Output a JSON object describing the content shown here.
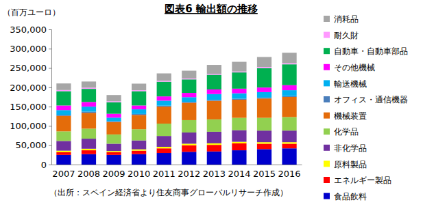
{
  "chart_data": {
    "type": "bar",
    "title": "図表6 輸出額の推移",
    "y_label": "（百万ユーロ）",
    "source": "（出所：スペイン経済省より住友商事グローバルリサーチ作成）",
    "stacked": true,
    "grid": false,
    "legend": "right",
    "categories": [
      "2007",
      "2008",
      "2009",
      "2010",
      "2011",
      "2012",
      "2013",
      "2014",
      "2015",
      "2016"
    ],
    "ylim": [
      0,
      350000
    ],
    "yticks": [
      0,
      {
        "value": 50000,
        "label": "50,000"
      },
      {
        "value": 100000,
        "label": "100,000"
      },
      {
        "value": 150000,
        "label": "150,000"
      },
      {
        "value": 200000,
        "label": "200,000"
      },
      {
        "value": 250000,
        "label": "250,000"
      },
      {
        "value": 300000,
        "label": "300,000"
      },
      {
        "value": 350000,
        "label": "350,000"
      }
    ],
    "series": [
      {
        "name": "食品飲料",
        "color": "#0000cc",
        "values": [
          25000,
          27000,
          25000,
          27000,
          30000,
          33000,
          34000,
          37000,
          40000,
          42000
        ]
      },
      {
        "name": "エネルギー製品",
        "color": "#ff0000",
        "values": [
          7000,
          10000,
          7000,
          9000,
          12000,
          17000,
          17000,
          18000,
          14000,
          12000
        ]
      },
      {
        "name": "原料製品",
        "color": "#ffff00",
        "values": [
          4000,
          4000,
          3000,
          3500,
          4000,
          4000,
          4000,
          4000,
          4000,
          4000
        ]
      },
      {
        "name": "非化学品",
        "color": "#7030a0",
        "values": [
          25000,
          26000,
          19000,
          23000,
          28000,
          29000,
          30000,
          30000,
          30000,
          30000
        ]
      },
      {
        "name": "化学品",
        "color": "#92d050",
        "values": [
          25000,
          26000,
          24000,
          29000,
          32000,
          32000,
          32000,
          32000,
          33000,
          35000
        ]
      },
      {
        "name": "機械装置",
        "color": "#e46c0a",
        "values": [
          40000,
          41000,
          32000,
          37000,
          44000,
          45000,
          48000,
          47000,
          50000,
          52000
        ]
      },
      {
        "name": "オフィス・通信機器",
        "color": "#4a7ebb",
        "values": [
          3000,
          3000,
          2500,
          2500,
          2500,
          2500,
          2500,
          2500,
          2500,
          2500
        ]
      },
      {
        "name": "輸送機械",
        "color": "#00b0f0",
        "values": [
          12000,
          13000,
          9000,
          12000,
          13000,
          12000,
          15000,
          14000,
          14000,
          15000
        ]
      },
      {
        "name": "その他機械",
        "color": "#ff00ff",
        "values": [
          12000,
          12000,
          10000,
          10000,
          11000,
          11000,
          12000,
          12000,
          12000,
          13000
        ]
      },
      {
        "name": "自動車・自動車部品",
        "color": "#00b050",
        "values": [
          37000,
          34000,
          30000,
          37000,
          38000,
          35000,
          38000,
          42000,
          50000,
          54000
        ]
      },
      {
        "name": "耐久財",
        "color": "#ff99ff",
        "values": [
          3000,
          3000,
          2500,
          2500,
          2500,
          2500,
          2500,
          2500,
          3000,
          3000
        ]
      },
      {
        "name": "消耗品",
        "color": "#a6a6a6",
        "values": [
          17000,
          16000,
          16000,
          17000,
          19000,
          20000,
          23000,
          25000,
          26000,
          27000
        ]
      }
    ]
  }
}
